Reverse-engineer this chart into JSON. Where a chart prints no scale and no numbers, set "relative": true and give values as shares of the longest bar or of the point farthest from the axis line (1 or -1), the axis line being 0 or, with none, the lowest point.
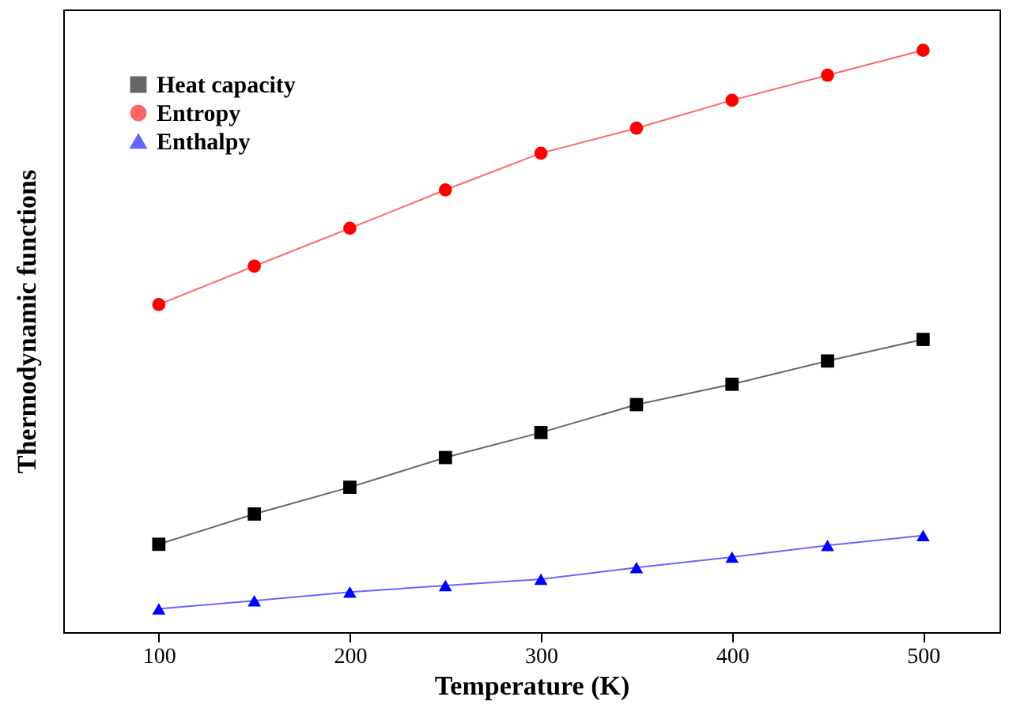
{
  "chart_data": {
    "type": "line",
    "xlabel": "Temperature (K)",
    "ylabel": "Thermodynamic functions",
    "relative": true,
    "x": [
      100,
      150,
      200,
      250,
      300,
      350,
      400,
      450,
      500
    ],
    "xlim": [
      50,
      540
    ],
    "xticks": [
      100,
      200,
      300,
      400,
      500
    ],
    "legend": "top left",
    "series": [
      {
        "name": "Heat capacity",
        "color": "#000000",
        "marker": "square",
        "values": [
          0.151,
          0.203,
          0.249,
          0.3,
          0.343,
          0.391,
          0.426,
          0.466,
          0.503
        ]
      },
      {
        "name": "Entropy",
        "color": "#ff0000",
        "marker": "circle",
        "values": [
          0.563,
          0.629,
          0.694,
          0.76,
          0.823,
          0.866,
          0.914,
          0.957,
          1
        ]
      },
      {
        "name": "Enthalpy",
        "color": "#0000ff",
        "marker": "triangle",
        "values": [
          0.04,
          0.054,
          0.069,
          0.08,
          0.091,
          0.111,
          0.129,
          0.149,
          0.166
        ]
      }
    ]
  }
}
